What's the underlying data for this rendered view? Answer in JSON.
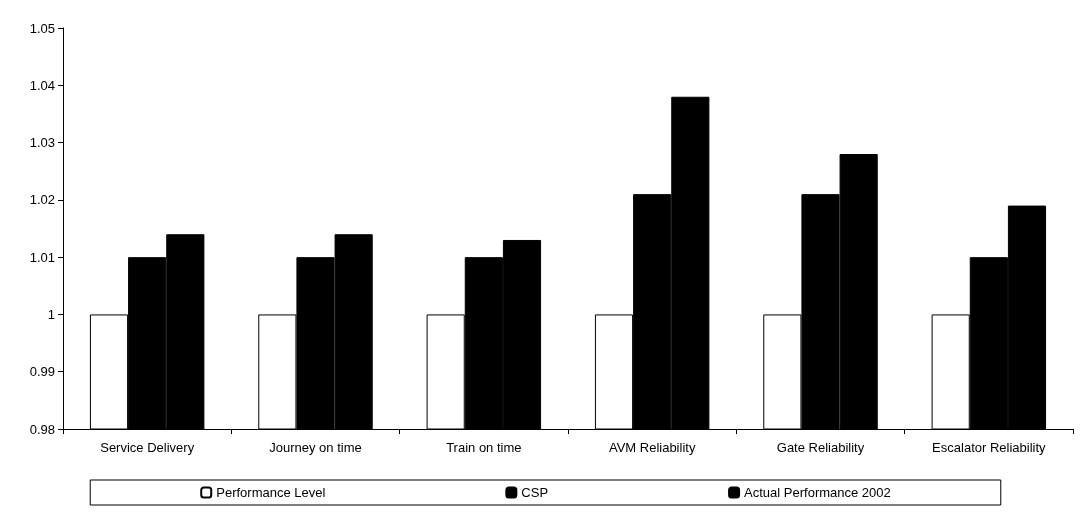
{
  "chart_data": {
    "type": "bar",
    "categories": [
      "Service Delivery",
      "Journey on time",
      "Train on time",
      "AVM Reliability",
      "Gate Reliability",
      "Escalator Reliability"
    ],
    "series": [
      {
        "name": "Performance Level",
        "color": "#ffffff",
        "values": [
          1,
          1,
          1,
          1,
          1,
          1
        ]
      },
      {
        "name": "CSP",
        "color": "#000000",
        "values": [
          1.01,
          1.01,
          1.01,
          1.021,
          1.021,
          1.01
        ]
      },
      {
        "name": "Actual Performance 2002",
        "color": "#000000",
        "values": [
          1.014,
          1.014,
          1.013,
          1.038,
          1.028,
          1.019
        ]
      }
    ],
    "ylim": [
      0.98,
      1.05
    ],
    "yticks": [
      0.98,
      0.99,
      1,
      1.01,
      1.02,
      1.03,
      1.04,
      1.05
    ],
    "grid": false,
    "legend": "bottom"
  }
}
